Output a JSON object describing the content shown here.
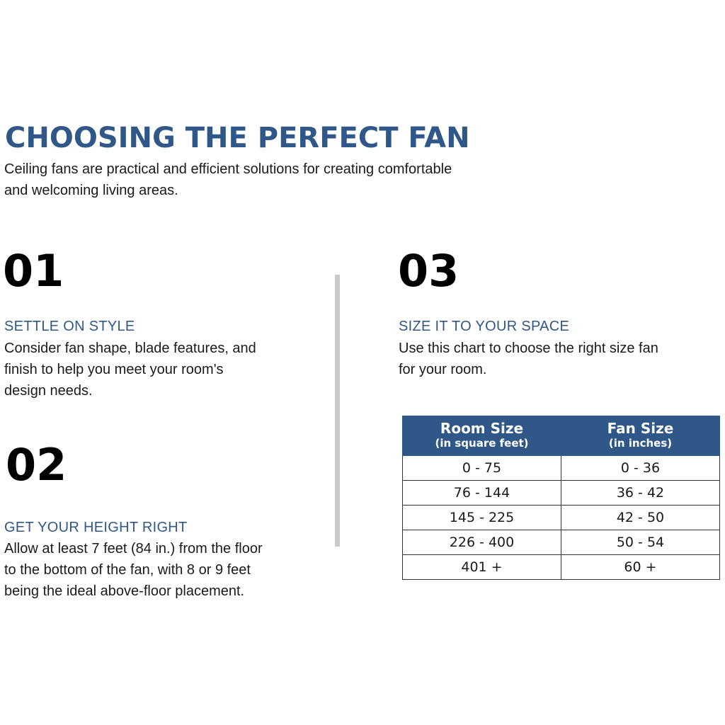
{
  "title": "CHOOSING THE PERFECT FAN",
  "intro": [
    "Ceiling fans are practical and efficient solutions for creating comfortable",
    "and welcoming living areas."
  ],
  "colors": {
    "accent": "#2f5888",
    "divider": "#c9cbcb"
  },
  "sections": [
    {
      "number": "01",
      "heading": "SETTLE ON STYLE",
      "lines": [
        "Consider fan shape, blade features, and",
        "finish to help you meet your room's",
        "design needs."
      ]
    },
    {
      "number": "02",
      "heading": "GET YOUR HEIGHT RIGHT",
      "lines": [
        "Allow at least 7 feet (84 in.) from the floor",
        "to the bottom of the fan, with 8 or 9 feet",
        "being the ideal above-floor placement."
      ]
    },
    {
      "number": "03",
      "heading": "SIZE IT TO YOUR SPACE",
      "lines": [
        "Use this chart to choose the right size fan",
        "for your room."
      ]
    }
  ],
  "table": {
    "headers": [
      {
        "label": "Room Size",
        "sub": "(in square feet)"
      },
      {
        "label": "Fan Size",
        "sub": "(in inches)"
      }
    ],
    "rows": [
      [
        "0 - 75",
        "0 - 36"
      ],
      [
        "76 - 144",
        "36 - 42"
      ],
      [
        "145 - 225",
        "42 - 50"
      ],
      [
        "226 - 400",
        "50 - 54"
      ],
      [
        "401 +",
        "60 +"
      ]
    ]
  }
}
